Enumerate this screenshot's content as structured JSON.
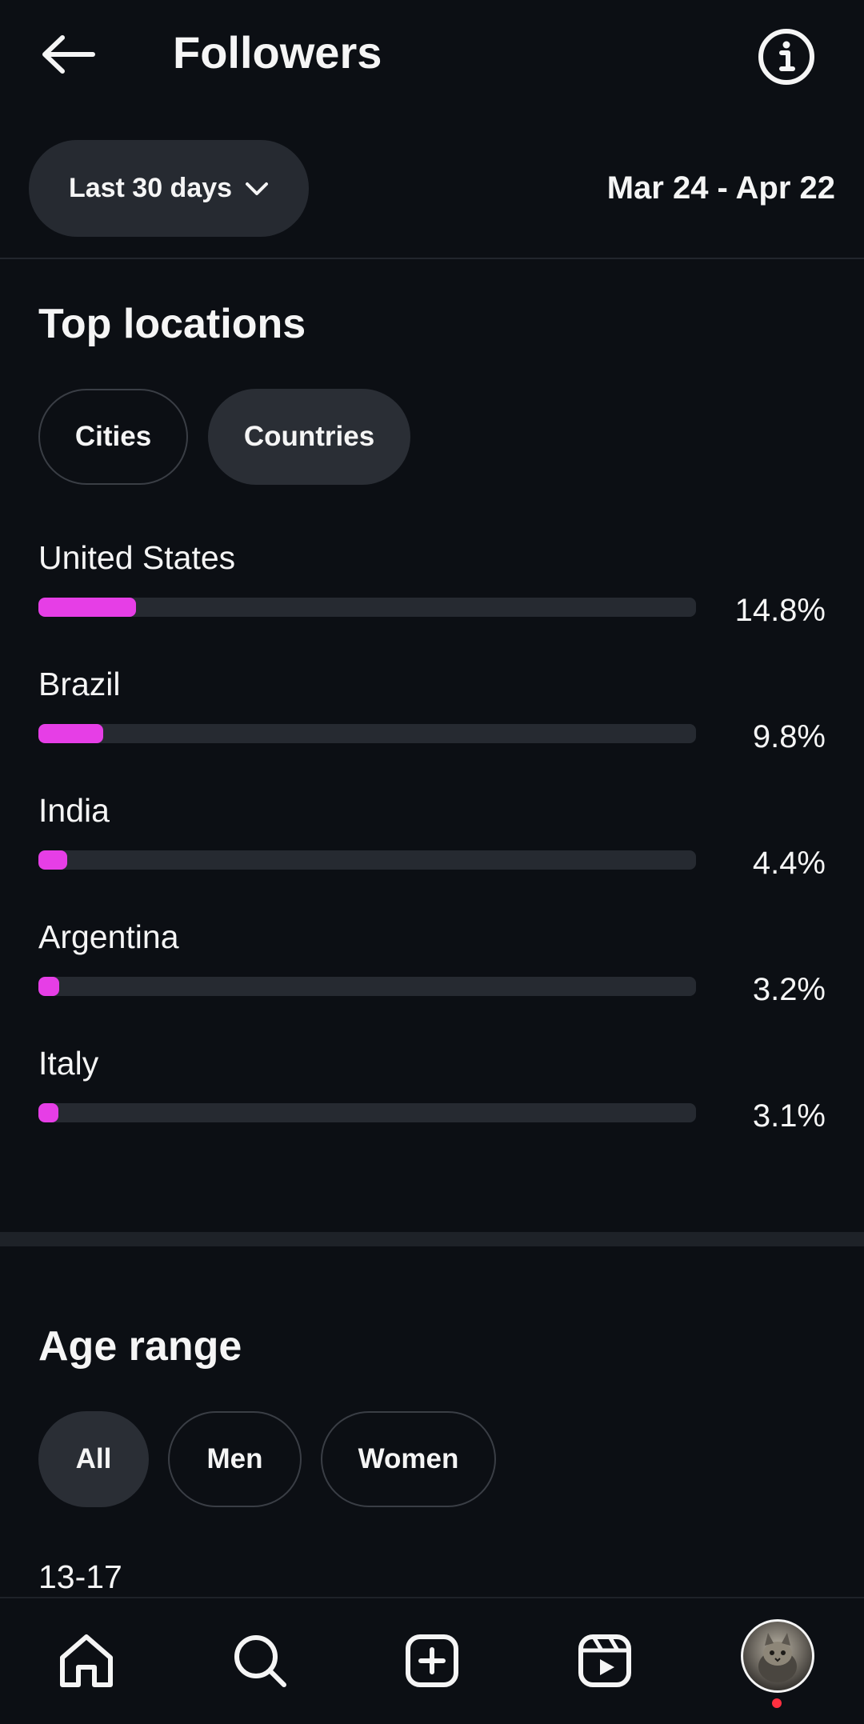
{
  "header": {
    "title": "Followers"
  },
  "filter": {
    "range_label": "Last 30 days",
    "date_range": "Mar 24 - Apr 22"
  },
  "top_locations": {
    "title": "Top locations",
    "tabs": [
      {
        "label": "Cities",
        "selected": false
      },
      {
        "label": "Countries",
        "selected": true
      }
    ],
    "items": [
      {
        "name": "United States",
        "percent_label": "14.8%",
        "percent": 14.8
      },
      {
        "name": "Brazil",
        "percent_label": "9.8%",
        "percent": 9.8
      },
      {
        "name": "India",
        "percent_label": "4.4%",
        "percent": 4.4
      },
      {
        "name": "Argentina",
        "percent_label": "3.2%",
        "percent": 3.2
      },
      {
        "name": "Italy",
        "percent_label": "3.1%",
        "percent": 3.1
      }
    ],
    "bar_color": "#e63ee6"
  },
  "age_range": {
    "title": "Age range",
    "tabs": [
      {
        "label": "All",
        "selected": true
      },
      {
        "label": "Men",
        "selected": false
      },
      {
        "label": "Women",
        "selected": false
      }
    ],
    "first_bucket": "13-17"
  },
  "bottom_nav": {
    "items": [
      "home-icon",
      "search-icon",
      "create-icon",
      "reels-icon",
      "profile-avatar"
    ]
  }
}
